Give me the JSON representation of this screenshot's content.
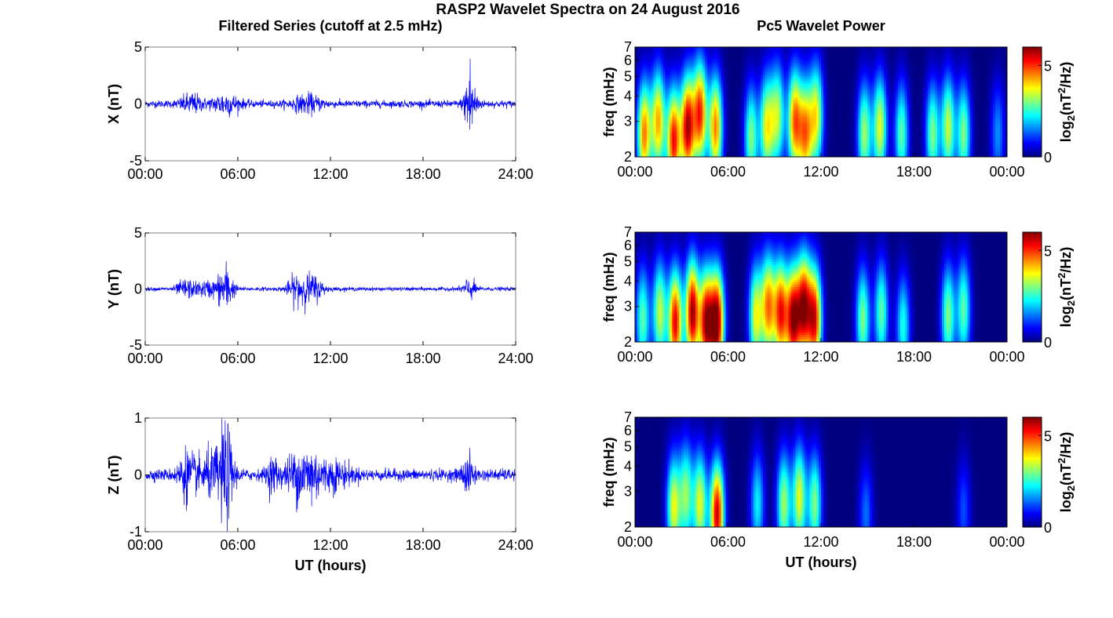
{
  "title": "RASP2 Wavelet Spectra on 24 August 2016",
  "left_title": "Filtered Series (cutoff at 2.5 mHz)",
  "right_title": "Pc5 Wavelet Power",
  "xlabel": "UT (hours)",
  "colors": {
    "trace": "#0000ff",
    "axis": "#000000"
  },
  "chart_data": [
    {
      "type": "line",
      "name": "X",
      "ylabel": "X (nT)",
      "xlim": [
        0,
        24
      ],
      "ylim": [
        -5,
        5
      ],
      "xticks": [
        "00:00",
        "06:00",
        "12:00",
        "18:00",
        "24:00"
      ],
      "yticks": [
        -5,
        0,
        5
      ],
      "base_amplitude": 0.28,
      "bursts": [
        [
          3,
          0.7,
          0.5
        ],
        [
          5.2,
          0.8,
          0.6
        ],
        [
          10.5,
          0.6,
          0.7
        ],
        [
          21,
          2.4,
          0.15
        ],
        [
          21.1,
          1.6,
          0.3
        ]
      ]
    },
    {
      "type": "line",
      "name": "Y",
      "ylabel": "Y (nT)",
      "xlim": [
        0,
        24
      ],
      "ylim": [
        -5,
        5
      ],
      "xticks": [
        "00:00",
        "06:00",
        "12:00",
        "18:00",
        "24:00"
      ],
      "yticks": [
        -5,
        0,
        5
      ],
      "base_amplitude": 0.15,
      "bursts": [
        [
          2.6,
          0.7,
          0.4
        ],
        [
          4,
          0.6,
          0.6
        ],
        [
          5.2,
          1.9,
          0.35
        ],
        [
          9.8,
          1.1,
          0.4
        ],
        [
          10.8,
          1.1,
          0.5
        ],
        [
          21,
          0.8,
          0.3
        ]
      ]
    },
    {
      "type": "line",
      "name": "Z",
      "ylabel": "Z (nT)",
      "xlim": [
        0,
        24
      ],
      "ylim": [
        -1,
        1
      ],
      "xticks": [
        "00:00",
        "06:00",
        "12:00",
        "18:00",
        "24:00"
      ],
      "yticks": [
        -1,
        0,
        1
      ],
      "base_amplitude": 0.09,
      "bursts": [
        [
          2.7,
          0.35,
          0.4
        ],
        [
          4.2,
          0.3,
          0.6
        ],
        [
          5.2,
          0.75,
          0.35
        ],
        [
          8.3,
          0.25,
          0.3
        ],
        [
          9.8,
          0.35,
          0.5
        ],
        [
          10.8,
          0.35,
          0.4
        ],
        [
          12.2,
          0.2,
          0.8
        ],
        [
          20.9,
          0.25,
          0.3
        ]
      ]
    },
    {
      "type": "heatmap",
      "name": "X wavelet power",
      "ylabel": "freq (mHz)",
      "colorbar_label": "log2(nT2/Hz)",
      "xlim": [
        0,
        24
      ],
      "ylim": [
        2,
        7
      ],
      "yscale": "log",
      "clim": [
        0,
        6
      ],
      "xticks": [
        "00:00",
        "06:00",
        "12:00",
        "18:00",
        "00:00"
      ],
      "yticks": [
        2,
        3,
        4,
        5,
        6,
        7
      ],
      "cbar_ticks": [
        0,
        5
      ],
      "blobs": [
        [
          0.6,
          2.6,
          4.5
        ],
        [
          1.5,
          3.0,
          4.2
        ],
        [
          2.5,
          2.4,
          5.2
        ],
        [
          3.4,
          2.8,
          5.6
        ],
        [
          4.2,
          3.3,
          5.0
        ],
        [
          5.2,
          2.8,
          4.5
        ],
        [
          7.5,
          2.5,
          3.0
        ],
        [
          8.5,
          2.8,
          3.6
        ],
        [
          9.2,
          3.2,
          3.2
        ],
        [
          10.3,
          3.0,
          4.5
        ],
        [
          11.0,
          2.6,
          4.2
        ],
        [
          11.7,
          3.2,
          3.6
        ],
        [
          14.8,
          2.6,
          3.2
        ],
        [
          15.8,
          2.8,
          3.6
        ],
        [
          17.2,
          2.6,
          2.8
        ],
        [
          19.2,
          2.6,
          3.0
        ],
        [
          20.2,
          2.8,
          3.4
        ],
        [
          21.2,
          2.6,
          3.0
        ],
        [
          23.4,
          2.6,
          1.6
        ]
      ]
    },
    {
      "type": "heatmap",
      "name": "Y wavelet power",
      "ylabel": "freq (mHz)",
      "colorbar_label": "log2(nT2/Hz)",
      "xlim": [
        0,
        24
      ],
      "ylim": [
        2,
        7
      ],
      "yscale": "log",
      "clim": [
        0,
        6
      ],
      "xticks": [
        "00:00",
        "06:00",
        "12:00",
        "18:00",
        "00:00"
      ],
      "yticks": [
        2,
        3,
        4,
        5,
        6,
        7
      ],
      "cbar_ticks": [
        0,
        5
      ],
      "blobs": [
        [
          0.5,
          2.6,
          2.8
        ],
        [
          1.6,
          2.8,
          3.4
        ],
        [
          2.6,
          2.5,
          5.4
        ],
        [
          3.7,
          2.8,
          5.8
        ],
        [
          4.6,
          2.5,
          5.6
        ],
        [
          5.3,
          2.5,
          6.0
        ],
        [
          7.8,
          2.7,
          3.6
        ],
        [
          8.6,
          3.0,
          4.4
        ],
        [
          9.4,
          2.8,
          5.0
        ],
        [
          10.2,
          2.6,
          5.6
        ],
        [
          10.9,
          3.0,
          5.4
        ],
        [
          11.6,
          2.6,
          5.2
        ],
        [
          14.7,
          2.6,
          3.0
        ],
        [
          15.9,
          2.8,
          2.8
        ],
        [
          17.3,
          2.4,
          2.4
        ],
        [
          20.2,
          2.7,
          3.0
        ],
        [
          21.2,
          2.9,
          2.8
        ]
      ]
    },
    {
      "type": "heatmap",
      "name": "Z wavelet power",
      "ylabel": "freq (mHz)",
      "colorbar_label": "log2(nT2/Hz)",
      "xlim": [
        0,
        24
      ],
      "ylim": [
        2,
        7
      ],
      "yscale": "log",
      "clim": [
        0,
        6
      ],
      "xticks": [
        "00:00",
        "06:00",
        "12:00",
        "18:00",
        "00:00"
      ],
      "yticks": [
        2,
        3,
        4,
        5,
        6,
        7
      ],
      "cbar_ticks": [
        0,
        5
      ],
      "blobs": [
        [
          2.5,
          2.5,
          3.6
        ],
        [
          3.3,
          2.9,
          3.0
        ],
        [
          4.2,
          2.6,
          3.6
        ],
        [
          5.3,
          2.3,
          5.6
        ],
        [
          7.9,
          2.6,
          2.2
        ],
        [
          9.6,
          2.6,
          3.2
        ],
        [
          10.6,
          2.8,
          3.6
        ],
        [
          11.6,
          2.6,
          3.0
        ],
        [
          14.9,
          2.3,
          1.4
        ],
        [
          21.2,
          2.4,
          1.2
        ]
      ]
    }
  ]
}
